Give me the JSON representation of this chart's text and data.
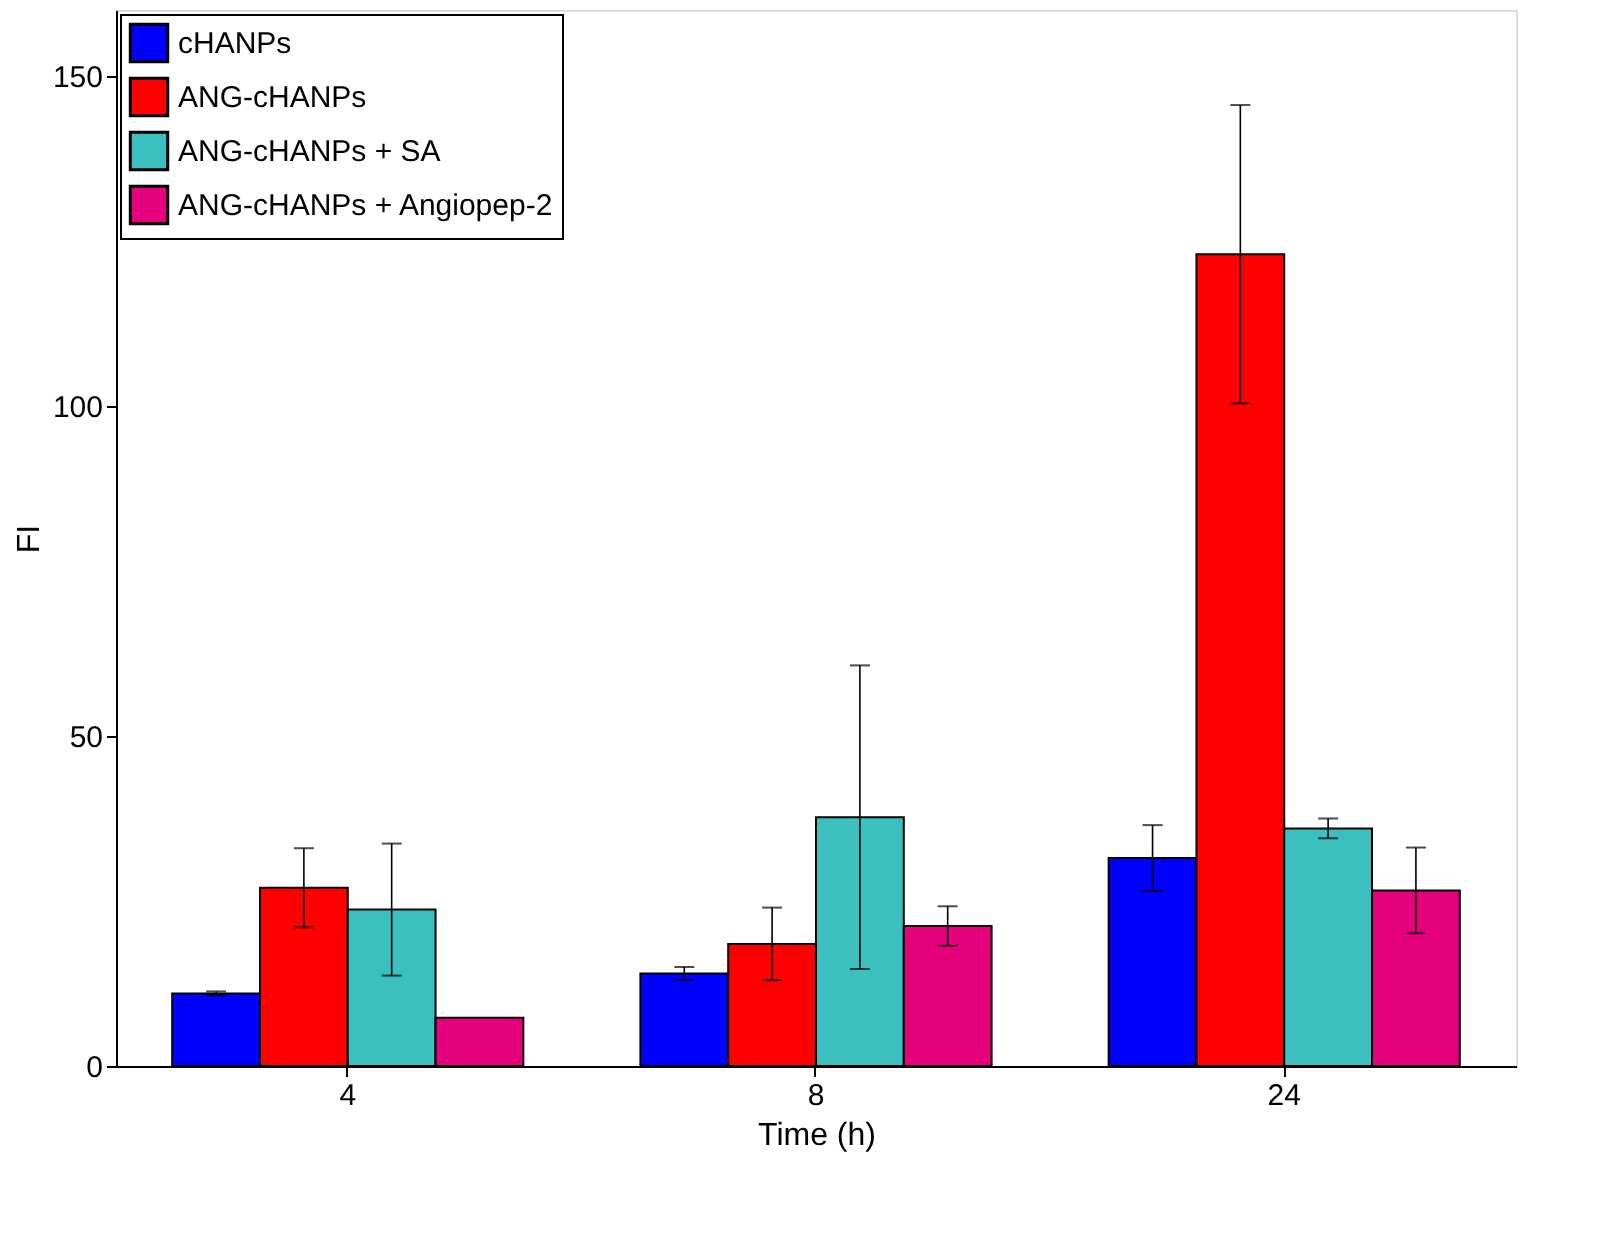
{
  "chart_data": {
    "type": "bar",
    "xlabel": "Time (h)",
    "ylabel": "FI",
    "categories": [
      "4",
      "8",
      "24"
    ],
    "series": [
      {
        "name": "cHANPs",
        "color": "#0000ff",
        "values": [
          11,
          14,
          31.5
        ],
        "errors": [
          0.3,
          1,
          5
        ]
      },
      {
        "name": "ANG-cHANPs",
        "color": "#ff0000",
        "values": [
          27,
          18.5,
          123
        ],
        "errors": [
          6,
          5.5,
          22.6
        ]
      },
      {
        "name": "ANG-cHANPs + SA",
        "color": "#3cbfbf",
        "values": [
          23.7,
          37.7,
          36
        ],
        "errors": [
          10,
          23,
          1.5
        ]
      },
      {
        "name": "ANG-cHANPs + Angiopep-2",
        "color": "#e6007e",
        "values": [
          7.3,
          21.2,
          26.6
        ],
        "errors": [
          null,
          3,
          6.5
        ]
      }
    ],
    "ylim": [
      0,
      160
    ],
    "yticks": [
      0,
      50,
      100,
      150
    ],
    "grid": false,
    "legend": "top left"
  }
}
